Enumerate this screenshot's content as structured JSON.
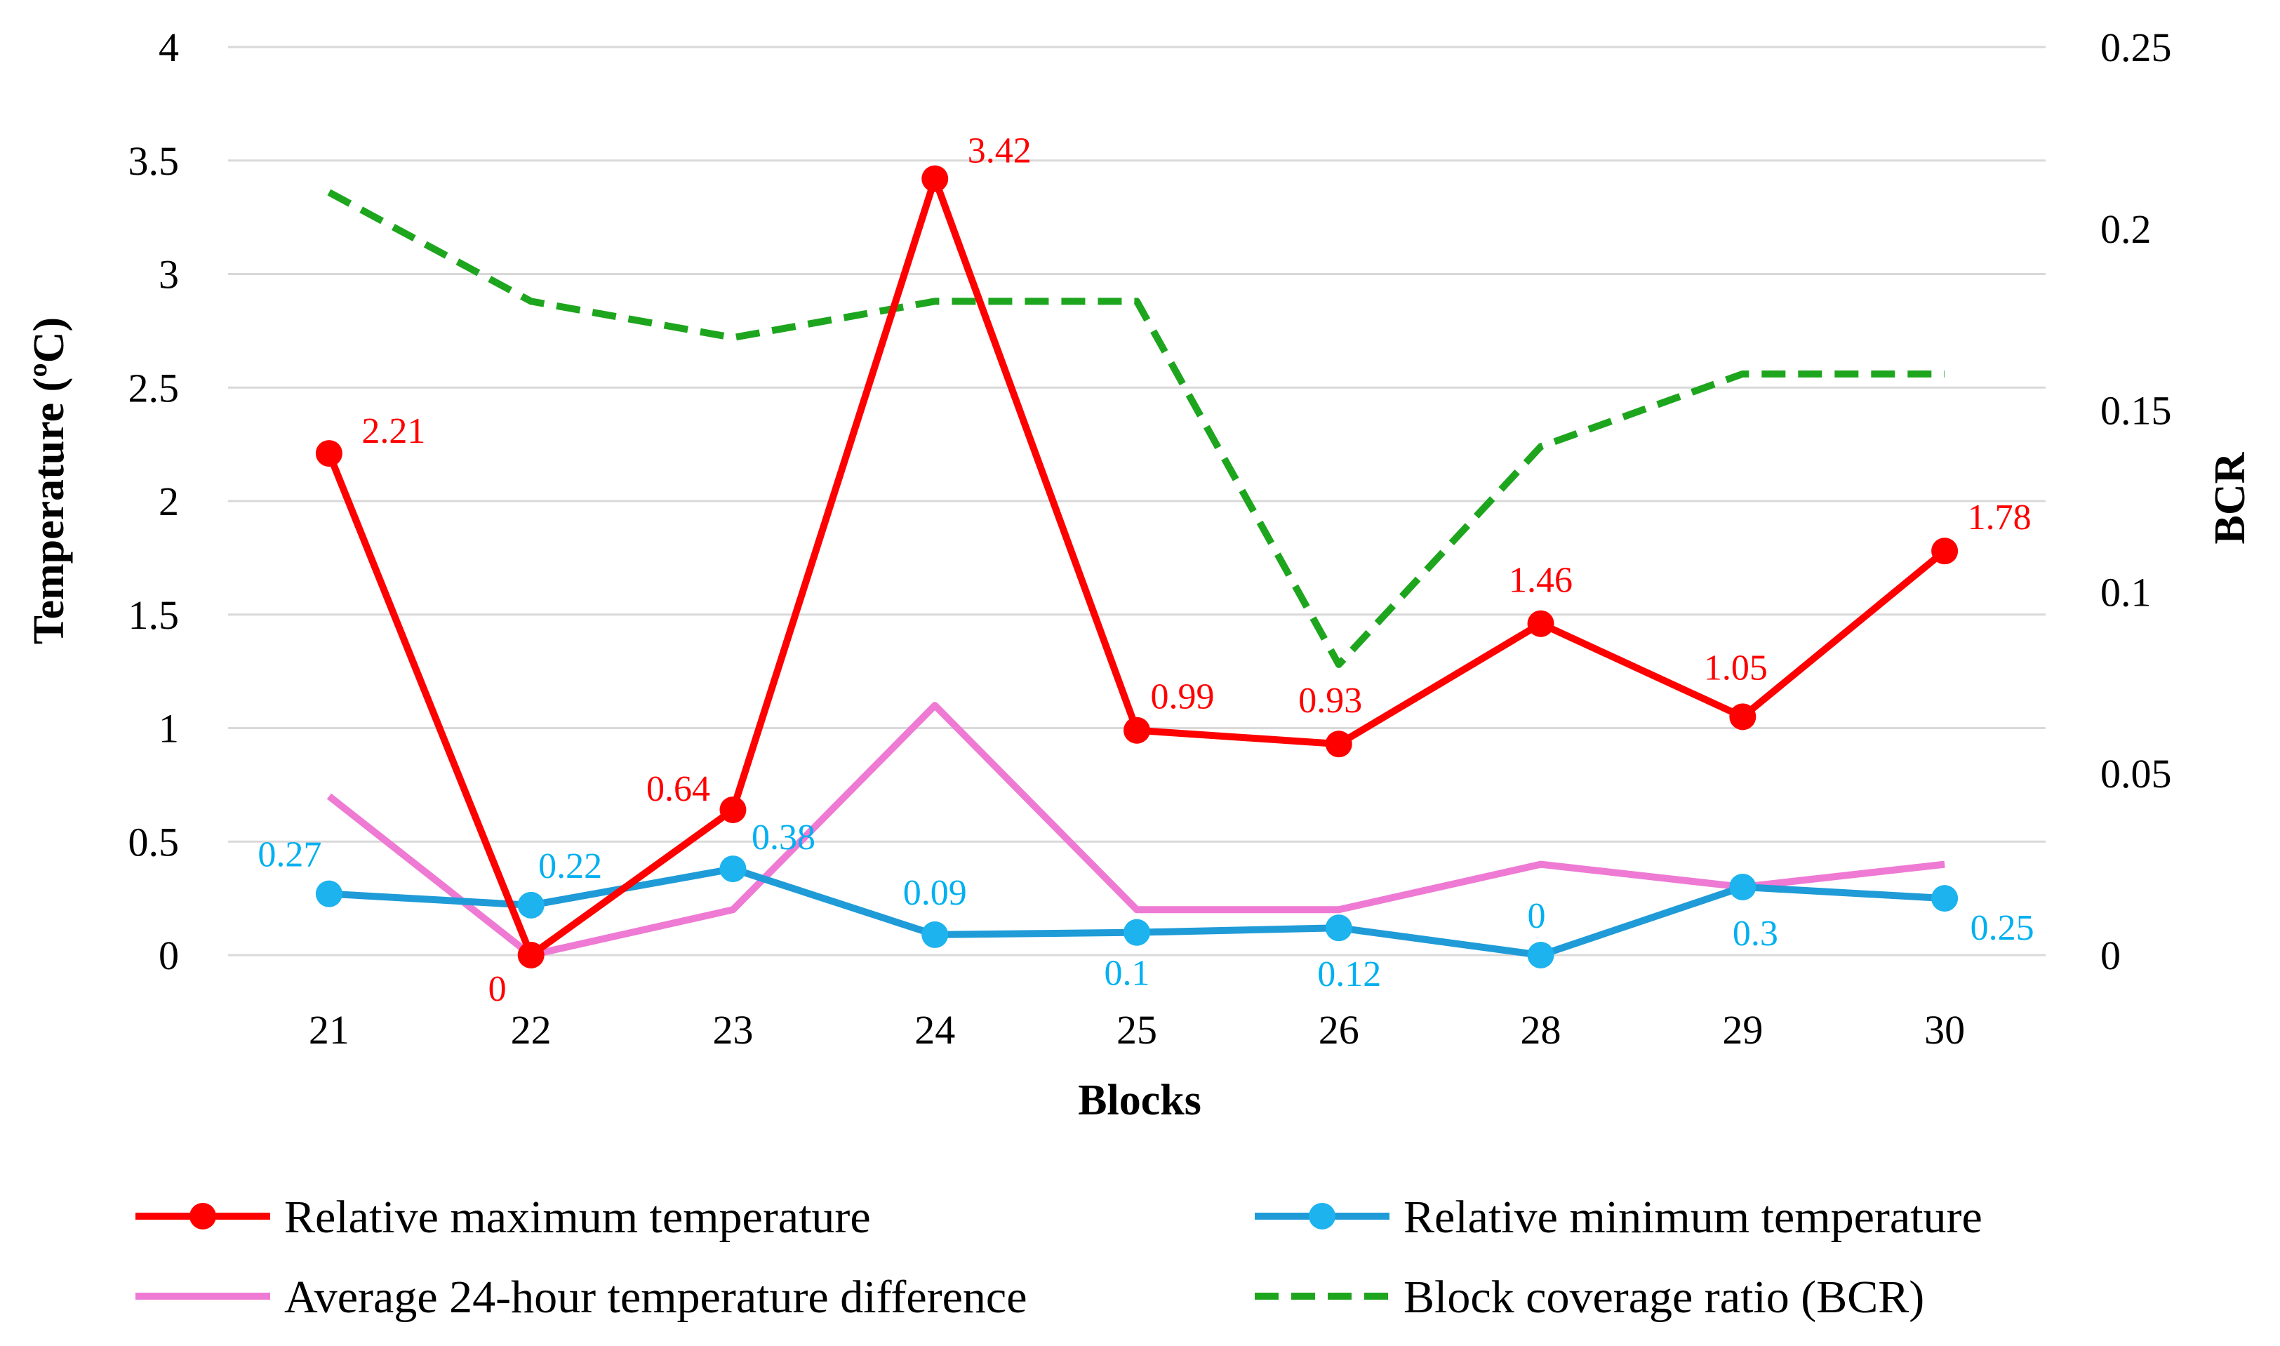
{
  "chart_data": {
    "type": "line",
    "xlabel": "Blocks",
    "ylabel": "Temperature (ºC)",
    "y2label": "BCR",
    "categories": [
      "21",
      "22",
      "23",
      "24",
      "25",
      "26",
      "28",
      "29",
      "30"
    ],
    "ylim": [
      0,
      4
    ],
    "yticks": [
      "0",
      "0.5",
      "1",
      "1.5",
      "2",
      "2.5",
      "3",
      "3.5",
      "4"
    ],
    "y2lim": [
      0,
      0.25
    ],
    "y2ticks": [
      "0",
      "0.05",
      "0.1",
      "0.15",
      "0.2",
      "0.25"
    ],
    "grid": true,
    "legend_position": "bottom",
    "series": [
      {
        "name": "Relative maximum temperature",
        "axis": "left",
        "color": "#ff0000",
        "style": "solid",
        "markers": true,
        "values": [
          2.21,
          0,
          0.64,
          3.42,
          0.99,
          0.93,
          1.46,
          1.05,
          1.78
        ],
        "labels": [
          "2.21",
          "0",
          "0.64",
          "3.42",
          "0.99",
          "0.93",
          "1.46",
          "1.05",
          "1.78"
        ]
      },
      {
        "name": "Relative minimum temperature",
        "axis": "left",
        "color": "#1f9bd7",
        "label_color": "#00b0f0",
        "style": "solid",
        "markers": true,
        "values": [
          0.27,
          0.22,
          0.38,
          0.09,
          0.1,
          0.12,
          0,
          0.3,
          0.25
        ],
        "labels": [
          "0.27",
          "0.22",
          "0.38",
          "0.09",
          "0.1",
          "0.12",
          "0",
          "0.3",
          "0.25"
        ]
      },
      {
        "name": "Average 24-hour temperature difference",
        "axis": "left",
        "color": "#ee7ad4",
        "style": "solid",
        "markers": false,
        "values": [
          0.7,
          0,
          0.2,
          1.1,
          0.2,
          0.2,
          0.4,
          0.3,
          0.4
        ]
      },
      {
        "name": "Block coverage ratio (BCR)",
        "axis": "right",
        "color": "#1ea51e",
        "style": "dashed",
        "markers": false,
        "values": [
          0.21,
          0.18,
          0.17,
          0.18,
          0.18,
          0.08,
          0.14,
          0.16,
          0.16
        ]
      }
    ]
  }
}
